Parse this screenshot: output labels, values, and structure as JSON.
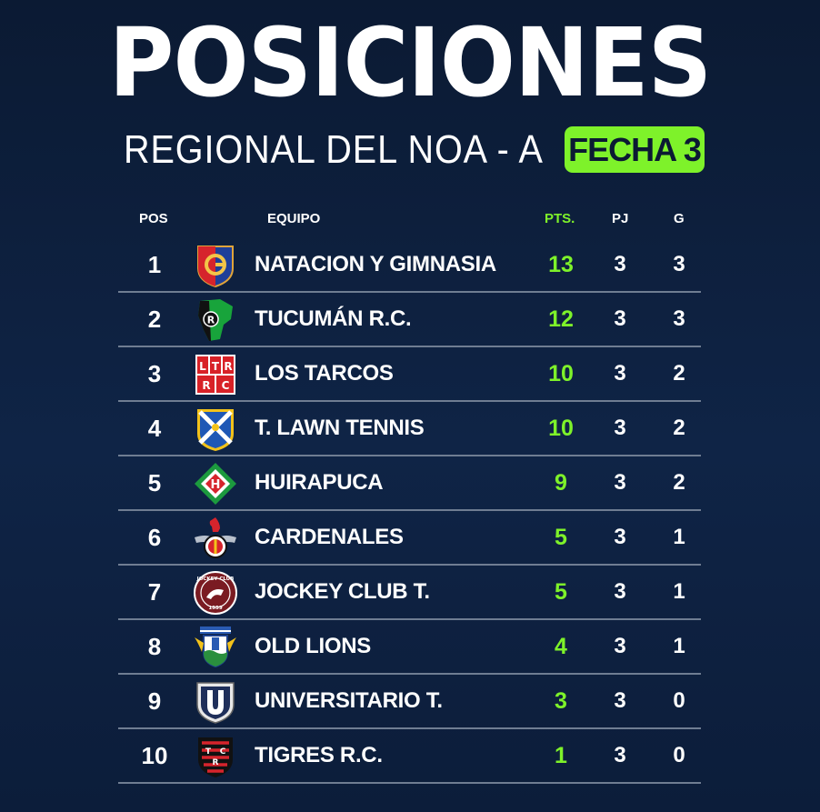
{
  "title": "POSICIONES",
  "subtitle": "REGIONAL DEL NOA - A",
  "badge": "FECHA 3",
  "colors": {
    "accent": "#7ef22a",
    "background": "#0f2446",
    "divider": "#6f7d92"
  },
  "headers": {
    "pos": "POS",
    "team": "EQUIPO",
    "pts": "PTS.",
    "pj": "PJ",
    "g": "G"
  },
  "rows": [
    {
      "pos": "1",
      "team": "NATACION Y GIMNASIA",
      "pts": "13",
      "pj": "3",
      "g": "3",
      "logo": "natacion-gimnasia-crest-icon"
    },
    {
      "pos": "2",
      "team": "TUCUMÁN R.C.",
      "pts": "12",
      "pj": "3",
      "g": "3",
      "logo": "tucuman-rc-crest-icon"
    },
    {
      "pos": "3",
      "team": "LOS TARCOS",
      "pts": "10",
      "pj": "3",
      "g": "2",
      "logo": "los-tarcos-crest-icon"
    },
    {
      "pos": "4",
      "team": "T. LAWN TENNIS",
      "pts": "10",
      "pj": "3",
      "g": "2",
      "logo": "lawn-tennis-crest-icon"
    },
    {
      "pos": "5",
      "team": "HUIRAPUCA",
      "pts": "9",
      "pj": "3",
      "g": "2",
      "logo": "huirapuca-crest-icon"
    },
    {
      "pos": "6",
      "team": "CARDENALES",
      "pts": "5",
      "pj": "3",
      "g": "1",
      "logo": "cardenales-crest-icon"
    },
    {
      "pos": "7",
      "team": "JOCKEY CLUB T.",
      "pts": "5",
      "pj": "3",
      "g": "1",
      "logo": "jockey-club-crest-icon"
    },
    {
      "pos": "8",
      "team": "OLD LIONS",
      "pts": "4",
      "pj": "3",
      "g": "1",
      "logo": "old-lions-crest-icon"
    },
    {
      "pos": "9",
      "team": "UNIVERSITARIO T.",
      "pts": "3",
      "pj": "3",
      "g": "0",
      "logo": "universitario-crest-icon"
    },
    {
      "pos": "10",
      "team": "TIGRES R.C.",
      "pts": "1",
      "pj": "3",
      "g": "0",
      "logo": "tigres-rc-crest-icon"
    }
  ]
}
